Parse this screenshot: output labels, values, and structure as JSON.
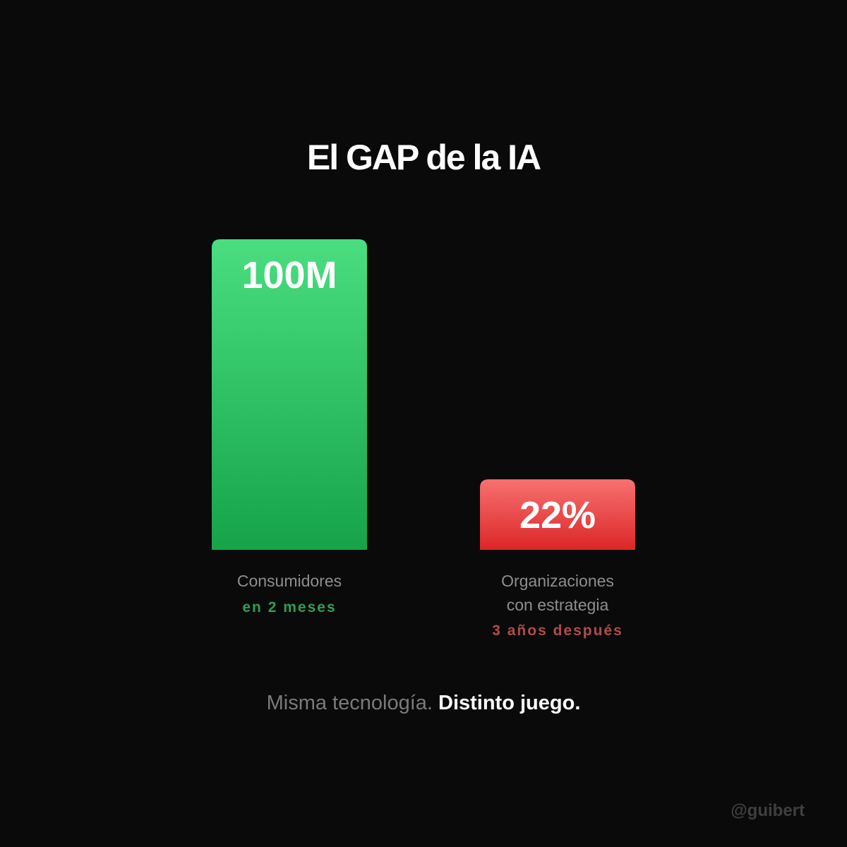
{
  "title": "El GAP de la IA",
  "chart_data": {
    "type": "bar",
    "title": "El GAP de la IA",
    "categories": [
      "Consumidores",
      "Organizaciones con estrategia"
    ],
    "category_lines": [
      [
        "Consumidores"
      ],
      [
        "Organizaciones",
        "con estrategia"
      ]
    ],
    "notes": [
      "en 2 meses",
      "3 años después"
    ],
    "value_labels": [
      "100M",
      "22%"
    ],
    "relative_heights": [
      1.0,
      0.227
    ],
    "colors": {
      "bar_1_top": "#4ade80",
      "bar_1_bottom": "#16a34a",
      "bar_2_top": "#f87171",
      "bar_2_bottom": "#dc2626"
    },
    "legend": "none",
    "grid": false
  },
  "tagline": {
    "muted": "Misma tecnología.",
    "strong": "Distinto juego."
  },
  "handle": "@guibert"
}
